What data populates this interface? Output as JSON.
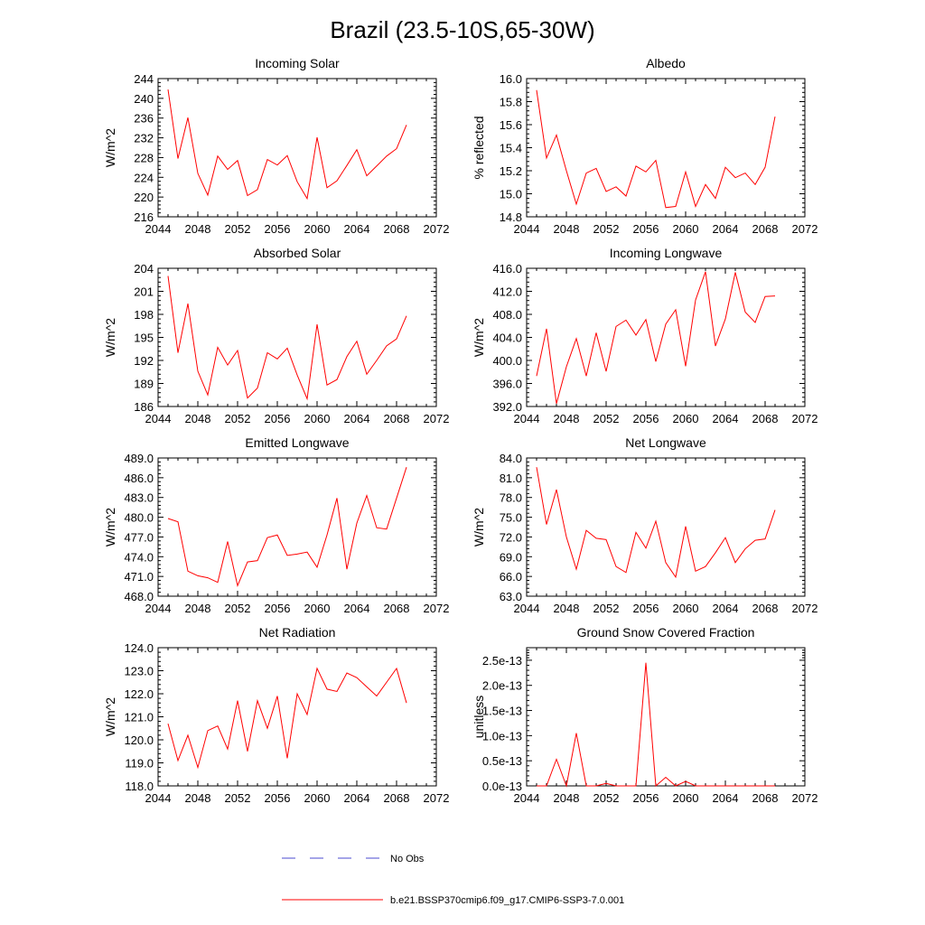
{
  "figure": {
    "title": "Brazil (23.5-10S,65-30W)",
    "line_color": "#ff0000",
    "obs_color": "#4a4ad0"
  },
  "legend": {
    "obs_label": "No Obs",
    "model_label": "b.e21.BSSP370cmip6.f09_g17.CMIP6-SSP3-7.0.001"
  },
  "chart_data": [
    {
      "type": "line",
      "title": "Incoming Solar",
      "ylabel": "W/m^2",
      "xlim": [
        2044,
        2072
      ],
      "xticks": [
        2044,
        2048,
        2052,
        2056,
        2060,
        2064,
        2068,
        2072
      ],
      "ylim": [
        216,
        244
      ],
      "yticks": [
        216,
        220,
        224,
        228,
        232,
        236,
        240,
        244
      ],
      "ytick_labels": [
        "216",
        "220",
        "224",
        "228",
        "232",
        "236",
        "240",
        "244"
      ],
      "x": [
        2045,
        2046,
        2047,
        2048,
        2049,
        2050,
        2051,
        2052,
        2053,
        2054,
        2055,
        2056,
        2057,
        2058,
        2059,
        2060,
        2061,
        2062,
        2063,
        2064,
        2065,
        2066,
        2067,
        2068,
        2069
      ],
      "y": [
        241.8,
        227.8,
        236.1,
        224.8,
        220.4,
        228.3,
        225.6,
        227.4,
        220.3,
        221.5,
        227.6,
        226.5,
        228.4,
        223.1,
        219.7,
        232.1,
        221.9,
        223.3,
        226.4,
        229.6,
        224.3,
        226.3,
        228.3,
        229.8,
        234.6
      ],
      "series_name": "b.e21.BSSP370cmip6.f09_g17.CMIP6-SSP3-7.0.001"
    },
    {
      "type": "line",
      "title": "Albedo",
      "ylabel": "% reflected",
      "xlim": [
        2044,
        2072
      ],
      "xticks": [
        2044,
        2048,
        2052,
        2056,
        2060,
        2064,
        2068,
        2072
      ],
      "ylim": [
        14.8,
        16.0
      ],
      "yticks": [
        14.8,
        15.0,
        15.2,
        15.4,
        15.6,
        15.8,
        16.0
      ],
      "ytick_labels": [
        "14.8",
        "15.0",
        "15.2",
        "15.4",
        "15.6",
        "15.8",
        "16.0"
      ],
      "x": [
        2045,
        2046,
        2047,
        2048,
        2049,
        2050,
        2051,
        2052,
        2053,
        2054,
        2055,
        2056,
        2057,
        2058,
        2059,
        2060,
        2061,
        2062,
        2063,
        2064,
        2065,
        2066,
        2067,
        2068,
        2069
      ],
      "y": [
        15.9,
        15.31,
        15.51,
        15.2,
        14.91,
        15.18,
        15.22,
        15.02,
        15.06,
        14.98,
        15.24,
        15.19,
        15.29,
        14.88,
        14.89,
        15.19,
        14.89,
        15.08,
        14.96,
        15.23,
        15.14,
        15.18,
        15.08,
        15.23,
        15.67
      ],
      "series_name": "b.e21.BSSP370cmip6.f09_g17.CMIP6-SSP3-7.0.001"
    },
    {
      "type": "line",
      "title": "Absorbed Solar",
      "ylabel": "W/m^2",
      "xlim": [
        2044,
        2072
      ],
      "xticks": [
        2044,
        2048,
        2052,
        2056,
        2060,
        2064,
        2068,
        2072
      ],
      "ylim": [
        186,
        204
      ],
      "yticks": [
        186,
        189,
        192,
        195,
        198,
        201,
        204
      ],
      "ytick_labels": [
        "186",
        "189",
        "192",
        "195",
        "198",
        "201",
        "204"
      ],
      "x": [
        2045,
        2046,
        2047,
        2048,
        2049,
        2050,
        2051,
        2052,
        2053,
        2054,
        2055,
        2056,
        2057,
        2058,
        2059,
        2060,
        2061,
        2062,
        2063,
        2064,
        2065,
        2066,
        2067,
        2068,
        2069
      ],
      "y": [
        203.0,
        193.0,
        199.4,
        190.6,
        187.5,
        193.7,
        191.4,
        193.3,
        187.1,
        188.4,
        193.0,
        192.2,
        193.6,
        190.1,
        187.0,
        196.7,
        188.8,
        189.5,
        192.5,
        194.5,
        190.2,
        192.0,
        193.9,
        194.8,
        197.8
      ],
      "series_name": "b.e21.BSSP370cmip6.f09_g17.CMIP6-SSP3-7.0.001"
    },
    {
      "type": "line",
      "title": "Incoming Longwave",
      "ylabel": "W/m^2",
      "xlim": [
        2044,
        2072
      ],
      "xticks": [
        2044,
        2048,
        2052,
        2056,
        2060,
        2064,
        2068,
        2072
      ],
      "ylim": [
        392,
        416
      ],
      "yticks": [
        392,
        396,
        400,
        404,
        408,
        412,
        416
      ],
      "ytick_labels": [
        "392.0",
        "396.0",
        "400.0",
        "404.0",
        "408.0",
        "412.0",
        "416.0"
      ],
      "x": [
        2045,
        2046,
        2047,
        2048,
        2049,
        2050,
        2051,
        2052,
        2053,
        2054,
        2055,
        2056,
        2057,
        2058,
        2059,
        2060,
        2061,
        2062,
        2063,
        2064,
        2065,
        2066,
        2067,
        2068,
        2069
      ],
      "y": [
        397.3,
        405.5,
        392.5,
        398.9,
        403.8,
        397.3,
        404.8,
        398.1,
        405.9,
        407.0,
        404.4,
        407.1,
        399.8,
        406.3,
        408.8,
        399.0,
        410.5,
        415.4,
        402.5,
        407.2,
        415.3,
        408.4,
        406.6,
        411.1,
        411.2
      ],
      "series_name": "b.e21.BSSP370cmip6.f09_g17.CMIP6-SSP3-7.0.001"
    },
    {
      "type": "line",
      "title": "Emitted Longwave",
      "ylabel": "W/m^2",
      "xlim": [
        2044,
        2072
      ],
      "xticks": [
        2044,
        2048,
        2052,
        2056,
        2060,
        2064,
        2068,
        2072
      ],
      "ylim": [
        468,
        489
      ],
      "yticks": [
        468,
        471,
        474,
        477,
        480,
        483,
        486,
        489
      ],
      "ytick_labels": [
        "468.0",
        "471.0",
        "474.0",
        "477.0",
        "480.0",
        "483.0",
        "486.0",
        "489.0"
      ],
      "x": [
        2045,
        2046,
        2047,
        2048,
        2049,
        2050,
        2051,
        2052,
        2053,
        2054,
        2055,
        2056,
        2057,
        2058,
        2059,
        2060,
        2061,
        2062,
        2063,
        2064,
        2065,
        2066,
        2067,
        2068,
        2069
      ],
      "y": [
        479.8,
        479.3,
        471.8,
        471.1,
        470.8,
        470.1,
        476.3,
        469.6,
        473.2,
        473.4,
        476.9,
        477.3,
        474.2,
        474.4,
        474.7,
        472.4,
        477.3,
        482.9,
        472.1,
        479.1,
        483.3,
        478.4,
        478.2,
        482.9,
        487.6
      ],
      "series_name": "b.e21.BSSP370cmip6.f09_g17.CMIP6-SSP3-7.0.001"
    },
    {
      "type": "line",
      "title": "Net Longwave",
      "ylabel": "W/m^2",
      "xlim": [
        2044,
        2072
      ],
      "xticks": [
        2044,
        2048,
        2052,
        2056,
        2060,
        2064,
        2068,
        2072
      ],
      "ylim": [
        63,
        84
      ],
      "yticks": [
        63,
        66,
        69,
        72,
        75,
        78,
        81,
        84
      ],
      "ytick_labels": [
        "63.0",
        "66.0",
        "69.0",
        "72.0",
        "75.0",
        "78.0",
        "81.0",
        "84.0"
      ],
      "x": [
        2045,
        2046,
        2047,
        2048,
        2049,
        2050,
        2051,
        2052,
        2053,
        2054,
        2055,
        2056,
        2057,
        2058,
        2059,
        2060,
        2061,
        2062,
        2063,
        2064,
        2065,
        2066,
        2067,
        2068,
        2069
      ],
      "y": [
        82.6,
        73.9,
        79.2,
        72.0,
        67.1,
        73.0,
        71.8,
        71.6,
        67.5,
        66.6,
        72.7,
        70.3,
        74.4,
        68.1,
        65.9,
        73.6,
        66.8,
        67.5,
        69.6,
        71.9,
        68.1,
        70.2,
        71.5,
        71.7,
        76.1
      ],
      "series_name": "b.e21.BSSP370cmip6.f09_g17.CMIP6-SSP3-7.0.001"
    },
    {
      "type": "line",
      "title": "Net Radiation",
      "ylabel": "W/m^2",
      "xlim": [
        2044,
        2072
      ],
      "xticks": [
        2044,
        2048,
        2052,
        2056,
        2060,
        2064,
        2068,
        2072
      ],
      "ylim": [
        118,
        124
      ],
      "yticks": [
        118,
        119,
        120,
        121,
        122,
        123,
        124
      ],
      "ytick_labels": [
        "118.0",
        "119.0",
        "120.0",
        "121.0",
        "122.0",
        "123.0",
        "124.0"
      ],
      "x": [
        2045,
        2046,
        2047,
        2048,
        2049,
        2050,
        2051,
        2052,
        2053,
        2054,
        2055,
        2056,
        2057,
        2058,
        2059,
        2060,
        2061,
        2062,
        2063,
        2064,
        2065,
        2066,
        2067,
        2068,
        2069
      ],
      "y": [
        120.7,
        119.1,
        120.2,
        118.8,
        120.4,
        120.6,
        119.6,
        121.7,
        119.5,
        121.7,
        120.5,
        121.9,
        119.2,
        122.0,
        121.1,
        123.1,
        122.2,
        122.1,
        122.9,
        122.7,
        122.3,
        121.9,
        122.5,
        123.1,
        121.6
      ],
      "series_name": "b.e21.BSSP370cmip6.f09_g17.CMIP6-SSP3-7.0.001"
    },
    {
      "type": "line",
      "title": "Ground Snow Covered Fraction",
      "ylabel": "unitless",
      "xlim": [
        2044,
        2072
      ],
      "xticks": [
        2044,
        2048,
        2052,
        2056,
        2060,
        2064,
        2068,
        2072
      ],
      "ylim": [
        0,
        2.75e-13
      ],
      "yticks": [
        0,
        5e-14,
        1e-13,
        1.5e-13,
        2e-13,
        2.5e-13
      ],
      "ytick_labels": [
        "0.0e-13",
        "0.5e-13",
        "1.0e-13",
        "1.5e-13",
        "2.0e-13",
        "2.5e-13"
      ],
      "x": [
        2045,
        2046,
        2047,
        2048,
        2049,
        2050,
        2051,
        2052,
        2053,
        2054,
        2055,
        2056,
        2057,
        2058,
        2059,
        2060,
        2061,
        2062,
        2063,
        2064,
        2065,
        2066,
        2067,
        2068,
        2069
      ],
      "y": [
        0,
        0,
        5.3e-14,
        0,
        1.05e-13,
        0,
        0,
        5e-15,
        0,
        0,
        0,
        2.45e-13,
        0,
        1.7e-14,
        0,
        9e-15,
        0,
        0,
        0,
        0,
        0,
        0,
        0,
        0,
        0
      ],
      "series_name": "b.e21.BSSP370cmip6.f09_g17.CMIP6-SSP3-7.0.001"
    }
  ]
}
